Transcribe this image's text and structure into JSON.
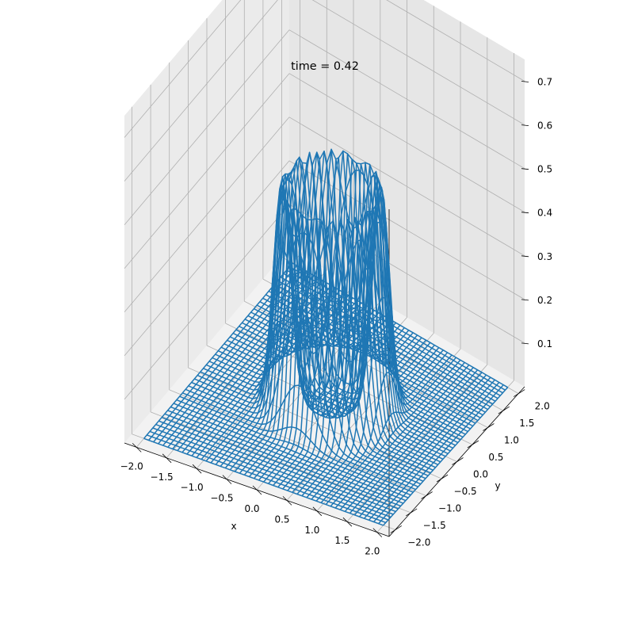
{
  "chart_data": {
    "type": "surface-wireframe-3d",
    "title": "time = 0.42",
    "xlabel": "x",
    "ylabel": "y",
    "zlabel": "",
    "xlim": [
      -2.2,
      2.2
    ],
    "ylim": [
      -2.2,
      2.2
    ],
    "zlim": [
      0.0,
      0.75
    ],
    "xticks": [
      -2.0,
      -1.5,
      -1.0,
      -0.5,
      0.0,
      0.5,
      1.0,
      1.5,
      2.0
    ],
    "xtick_labels": [
      "−2.0",
      "−1.5",
      "−1.0",
      "−0.5",
      "0.0",
      "0.5",
      "1.0",
      "1.5",
      "2.0"
    ],
    "yticks": [
      -2.0,
      -1.5,
      -1.0,
      -0.5,
      0.0,
      0.5,
      1.0,
      1.5,
      2.0
    ],
    "ytick_labels": [
      "−2.0",
      "−1.5",
      "−1.0",
      "−0.5",
      "0.0",
      "0.5",
      "1.0",
      "1.5",
      "2.0"
    ],
    "zticks": [
      0.1,
      0.2,
      0.3,
      0.4,
      0.5,
      0.6,
      0.7
    ],
    "ztick_labels": [
      "0.1",
      "0.2",
      "0.3",
      "0.4",
      "0.5",
      "0.6",
      "0.7"
    ],
    "surface": {
      "description": "annular ring surface: z = amplitude * exp(-((r - radius) / width)^2), r = sqrt(x^2 + y^2)",
      "domain_x": [
        -2.0,
        2.0
      ],
      "domain_y": [
        -2.0,
        2.0
      ],
      "grid_lines": 51,
      "ring_radius": 0.75,
      "ring_width": 0.18,
      "amplitude": 0.5
    },
    "line_color": "#1f77b4",
    "grid": true,
    "pane_colors": [
      "#f2f2f2",
      "#ebebeb",
      "#e6e6e6"
    ]
  }
}
